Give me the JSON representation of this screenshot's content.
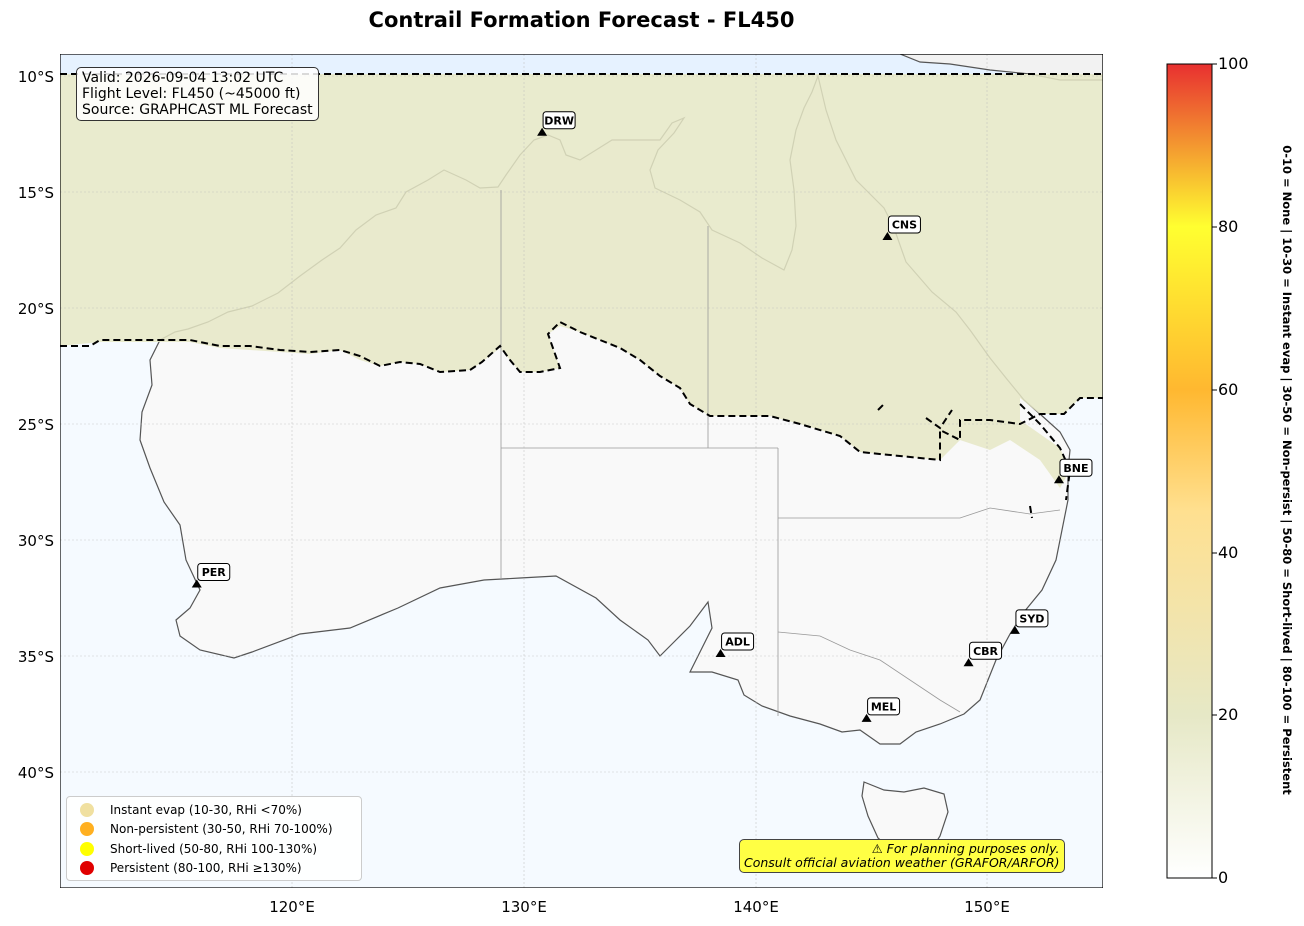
{
  "title": "Contrail Formation Forecast - FL450",
  "info": {
    "valid": "Valid: 2026-09-04 13:02 UTC",
    "flight_level": "Flight Level: FL450 (~45000 ft)",
    "source": "Source: GRAPHCAST ML Forecast"
  },
  "map": {
    "lon_range": [
      110,
      155
    ],
    "lat_range": [
      -45,
      -9
    ],
    "lon_ticks": [
      120,
      130,
      140,
      150
    ],
    "lon_tick_labels": [
      "120°E",
      "130°E",
      "140°E",
      "150°E"
    ],
    "lat_ticks": [
      -10,
      -15,
      -20,
      -25,
      -30,
      -35,
      -40
    ],
    "lat_tick_labels": [
      "10°S",
      "15°S",
      "20°S",
      "25°S",
      "30°S",
      "35°S",
      "40°S"
    ],
    "gridlines": true,
    "colors": {
      "land": "#f9f9f9",
      "ocean": "#f5faff",
      "instant_evap_field": "#e6e8c6",
      "coastline": "#555555",
      "contour": "#000000"
    }
  },
  "airports": [
    {
      "code": "DRW",
      "lon": 130.8,
      "lat": -12.4
    },
    {
      "code": "CNS",
      "lon": 145.7,
      "lat": -16.9
    },
    {
      "code": "BNE",
      "lon": 153.1,
      "lat": -27.4
    },
    {
      "code": "PER",
      "lon": 115.9,
      "lat": -31.9
    },
    {
      "code": "ADL",
      "lon": 138.5,
      "lat": -34.9
    },
    {
      "code": "SYD",
      "lon": 151.2,
      "lat": -33.9
    },
    {
      "code": "CBR",
      "lon": 149.2,
      "lat": -35.3
    },
    {
      "code": "MEL",
      "lon": 144.8,
      "lat": -37.7
    }
  ],
  "legend": {
    "placement": "lower-left",
    "items": [
      {
        "label": "Instant evap (10-30, RHi <70%)",
        "color": "#f0e0a0"
      },
      {
        "label": "Non-persistent (30-50, RHi 70-100%)",
        "color": "#ffb020"
      },
      {
        "label": "Short-lived (50-80, RHi 100-130%)",
        "color": "#ffff00"
      },
      {
        "label": "Persistent (80-100, RHi ≥130%)",
        "color": "#e00000"
      }
    ]
  },
  "warning": {
    "line1": "⚠ For planning purposes only.",
    "line2": "Consult official aviation weather (GRAFOR/ARFOR)"
  },
  "colorbar": {
    "range": [
      0,
      100
    ],
    "ticks": [
      0,
      20,
      40,
      60,
      80,
      100
    ],
    "tick_labels": [
      "0",
      "20",
      "40",
      "60",
      "80",
      "100"
    ],
    "description": "0-10 = None  |  10-30 = Instant evap  |  30-50 = Non-persist  |  50-80 = Short-lived  |  80-100 = Persistent"
  }
}
